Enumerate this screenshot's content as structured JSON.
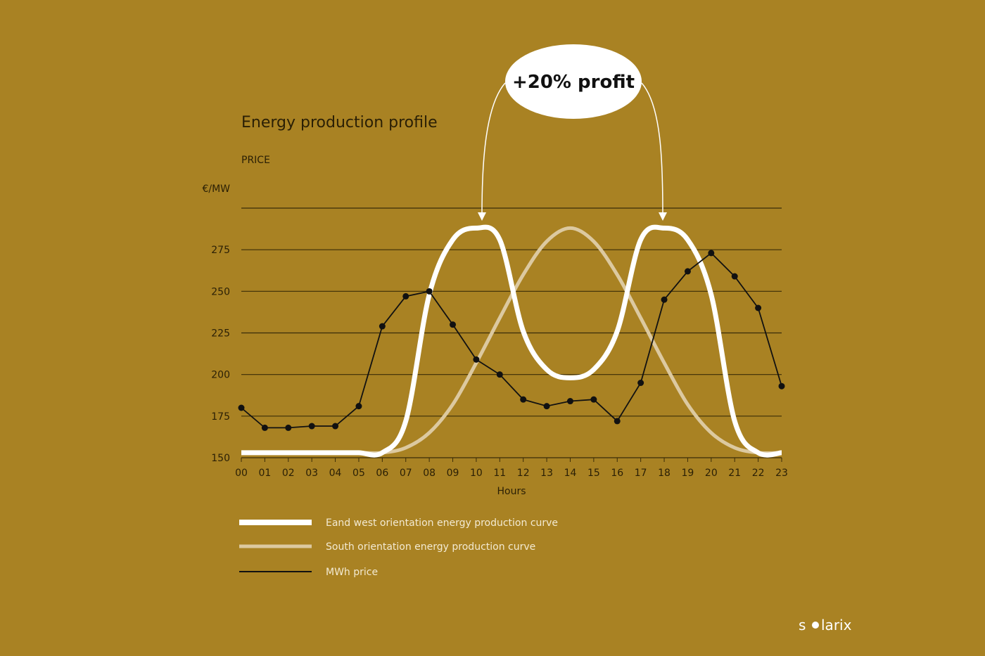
{
  "colors": {
    "background": "#a98223",
    "east_west": "#ffffff",
    "south": "#dcc9a0",
    "price": "#111111",
    "grid": "#3a2c08"
  },
  "chart_data": {
    "type": "line",
    "title": "Energy production profile",
    "ylabel_top": "PRICE",
    "yunit": "€/MW",
    "xlabel": "Hours",
    "ylim": [
      150,
      300
    ],
    "yticks": [
      150,
      175,
      200,
      225,
      250,
      275
    ],
    "grid": true,
    "legend_placement": "bottom-left",
    "x": [
      "00",
      "01",
      "02",
      "03",
      "04",
      "05",
      "06",
      "07",
      "08",
      "09",
      "10",
      "11",
      "12",
      "13",
      "14",
      "15",
      "16",
      "17",
      "18",
      "19",
      "20",
      "21",
      "22",
      "23"
    ],
    "series": [
      {
        "name": "Eand west orientation energy production curve",
        "style": "thick-white",
        "values": [
          153,
          153,
          153,
          153,
          153,
          153,
          153,
          172,
          248,
          281,
          288,
          281,
          226,
          203,
          198,
          203,
          226,
          281,
          288,
          281,
          248,
          172,
          153,
          153
        ]
      },
      {
        "name": "South orientation energy production curve",
        "style": "thick-beige",
        "values": [
          153,
          153,
          153,
          153,
          153,
          153,
          153,
          156,
          165,
          182,
          207,
          234,
          260,
          280,
          288,
          280,
          260,
          234,
          207,
          182,
          165,
          156,
          153,
          153
        ]
      },
      {
        "name": "MWh price",
        "style": "thin-black-markers",
        "values": [
          180,
          168,
          168,
          169,
          169,
          181,
          229,
          247,
          250,
          230,
          209,
          200,
          185,
          181,
          184,
          185,
          172,
          195,
          245,
          262,
          273,
          259,
          240,
          193
        ]
      }
    ],
    "annotation": {
      "text": "+20% profit",
      "arrows_to": [
        "10",
        "18"
      ]
    }
  },
  "brand": {
    "logo": "solarix"
  }
}
